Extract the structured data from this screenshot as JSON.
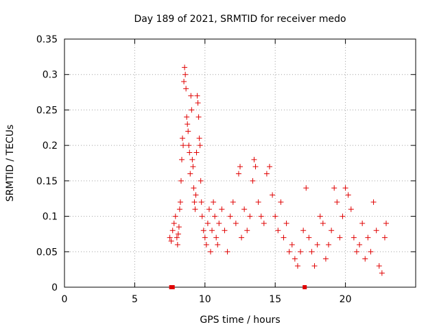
{
  "chart_data": {
    "type": "scatter",
    "title": "Day 189 of 2021, SRMTID for receiver medo",
    "xlabel": "GPS time / hours",
    "ylabel": "SRMTID / TECUs",
    "xlim": [
      0,
      25
    ],
    "ylim": [
      0,
      0.35
    ],
    "xticks": [
      0,
      5,
      10,
      15,
      20
    ],
    "xtick_labels": [
      "0",
      "5",
      "10",
      "15",
      "20"
    ],
    "yticks": [
      0,
      0.05,
      0.1,
      0.15,
      0.2,
      0.25,
      0.3,
      0.35
    ],
    "ytick_labels": [
      "0",
      "0.05",
      "0.1",
      "0.15",
      "0.2",
      "0.25",
      "0.3",
      "0.35"
    ],
    "grid": true,
    "marker": "+",
    "color": "#e00000",
    "series": [
      {
        "points": [
          [
            7.5,
            0.07
          ],
          [
            7.6,
            0.065
          ],
          [
            7.7,
            0.08
          ],
          [
            7.8,
            0.09
          ],
          [
            7.9,
            0.1
          ],
          [
            8.0,
            0.07
          ],
          [
            8.05,
            0.06
          ],
          [
            8.1,
            0.075
          ],
          [
            8.15,
            0.085
          ],
          [
            8.2,
            0.11
          ],
          [
            8.25,
            0.12
          ],
          [
            8.3,
            0.15
          ],
          [
            8.35,
            0.18
          ],
          [
            8.4,
            0.21
          ],
          [
            8.45,
            0.2
          ],
          [
            8.5,
            0.29
          ],
          [
            8.55,
            0.31
          ],
          [
            8.6,
            0.3
          ],
          [
            8.65,
            0.28
          ],
          [
            8.7,
            0.24
          ],
          [
            8.75,
            0.23
          ],
          [
            8.8,
            0.22
          ],
          [
            8.85,
            0.2
          ],
          [
            8.9,
            0.19
          ],
          [
            8.95,
            0.16
          ],
          [
            9.0,
            0.27
          ],
          [
            9.05,
            0.25
          ],
          [
            9.1,
            0.18
          ],
          [
            9.15,
            0.17
          ],
          [
            9.2,
            0.14
          ],
          [
            9.25,
            0.12
          ],
          [
            9.3,
            0.11
          ],
          [
            9.35,
            0.13
          ],
          [
            9.4,
            0.19
          ],
          [
            9.45,
            0.27
          ],
          [
            9.5,
            0.26
          ],
          [
            9.55,
            0.24
          ],
          [
            9.6,
            0.21
          ],
          [
            9.65,
            0.2
          ],
          [
            9.7,
            0.15
          ],
          [
            9.75,
            0.12
          ],
          [
            9.8,
            0.1
          ],
          [
            9.9,
            0.08
          ],
          [
            10.0,
            0.07
          ],
          [
            10.1,
            0.06
          ],
          [
            10.2,
            0.09
          ],
          [
            10.3,
            0.11
          ],
          [
            10.4,
            0.05
          ],
          [
            10.5,
            0.08
          ],
          [
            10.6,
            0.12
          ],
          [
            10.7,
            0.1
          ],
          [
            10.8,
            0.07
          ],
          [
            10.9,
            0.06
          ],
          [
            11.0,
            0.09
          ],
          [
            11.2,
            0.11
          ],
          [
            11.4,
            0.08
          ],
          [
            11.6,
            0.05
          ],
          [
            11.8,
            0.1
          ],
          [
            12.0,
            0.12
          ],
          [
            12.2,
            0.09
          ],
          [
            12.4,
            0.16
          ],
          [
            12.5,
            0.17
          ],
          [
            12.6,
            0.07
          ],
          [
            12.8,
            0.11
          ],
          [
            13.0,
            0.08
          ],
          [
            13.2,
            0.1
          ],
          [
            13.4,
            0.15
          ],
          [
            13.5,
            0.18
          ],
          [
            13.6,
            0.17
          ],
          [
            13.8,
            0.12
          ],
          [
            14.0,
            0.1
          ],
          [
            14.2,
            0.09
          ],
          [
            14.4,
            0.16
          ],
          [
            14.6,
            0.17
          ],
          [
            14.8,
            0.13
          ],
          [
            15.0,
            0.1
          ],
          [
            15.2,
            0.08
          ],
          [
            15.4,
            0.12
          ],
          [
            15.6,
            0.07
          ],
          [
            15.8,
            0.09
          ],
          [
            16.0,
            0.05
          ],
          [
            16.2,
            0.06
          ],
          [
            16.4,
            0.04
          ],
          [
            16.6,
            0.03
          ],
          [
            16.8,
            0.05
          ],
          [
            17.0,
            0.08
          ],
          [
            17.2,
            0.14
          ],
          [
            17.4,
            0.07
          ],
          [
            17.6,
            0.05
          ],
          [
            17.8,
            0.03
          ],
          [
            18.0,
            0.06
          ],
          [
            18.2,
            0.1
          ],
          [
            18.4,
            0.09
          ],
          [
            18.6,
            0.04
          ],
          [
            18.8,
            0.06
          ],
          [
            19.0,
            0.08
          ],
          [
            19.2,
            0.14
          ],
          [
            19.4,
            0.12
          ],
          [
            19.6,
            0.07
          ],
          [
            19.8,
            0.1
          ],
          [
            20.0,
            0.14
          ],
          [
            20.2,
            0.13
          ],
          [
            20.4,
            0.11
          ],
          [
            20.6,
            0.07
          ],
          [
            20.8,
            0.05
          ],
          [
            21.0,
            0.06
          ],
          [
            21.2,
            0.09
          ],
          [
            21.4,
            0.04
          ],
          [
            21.6,
            0.07
          ],
          [
            21.8,
            0.05
          ],
          [
            22.0,
            0.12
          ],
          [
            22.2,
            0.08
          ],
          [
            22.4,
            0.03
          ],
          [
            22.6,
            0.02
          ],
          [
            22.8,
            0.07
          ],
          [
            22.9,
            0.09
          ]
        ]
      }
    ],
    "gap_markers": [
      7.6,
      7.7,
      17.1
    ]
  }
}
